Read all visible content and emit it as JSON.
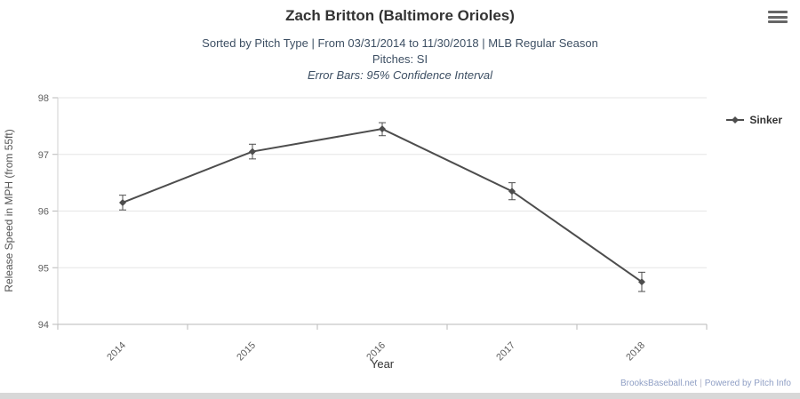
{
  "header": {
    "title": "Zach Britton (Baltimore Orioles)",
    "subtitle_line1": "Sorted by Pitch Type | From 03/31/2014 to 11/30/2018 | MLB Regular Season",
    "subtitle_line2": "Pitches: SI",
    "subtitle_line3": "Error Bars: 95% Confidence Interval",
    "menu_icon": "hamburger-icon"
  },
  "legend": {
    "items": [
      {
        "label": "Sinker",
        "marker_color": "#4d4d4d",
        "marker_shape": "diamond"
      }
    ]
  },
  "chart_data": {
    "type": "line",
    "title": "Zach Britton (Baltimore Orioles)",
    "subtitle": "Sorted by Pitch Type | From 03/31/2014 to 11/30/2018 | MLB Regular Season | Pitches: SI | Error Bars: 95% Confidence Interval",
    "categories": [
      "2014",
      "2015",
      "2016",
      "2017",
      "2018"
    ],
    "series": [
      {
        "name": "Sinker",
        "values": [
          96.15,
          97.05,
          97.45,
          96.35,
          94.75
        ],
        "error_low": [
          96.02,
          96.92,
          97.33,
          96.2,
          94.58
        ],
        "error_high": [
          96.28,
          97.18,
          97.56,
          96.5,
          94.92
        ]
      }
    ],
    "xlabel": "Year",
    "ylabel": "Release Speed in MPH (from 55ft)",
    "ylim": [
      94,
      98
    ],
    "yticks": [
      94,
      95,
      96,
      97,
      98
    ],
    "grid": true,
    "legend_position": "right",
    "line_color": "#4d4d4d",
    "grid_color": "#e6e6e6"
  },
  "footer": {
    "site_link": "BrooksBaseball.net",
    "separator": "|",
    "powered_link": "Powered by Pitch Info"
  }
}
